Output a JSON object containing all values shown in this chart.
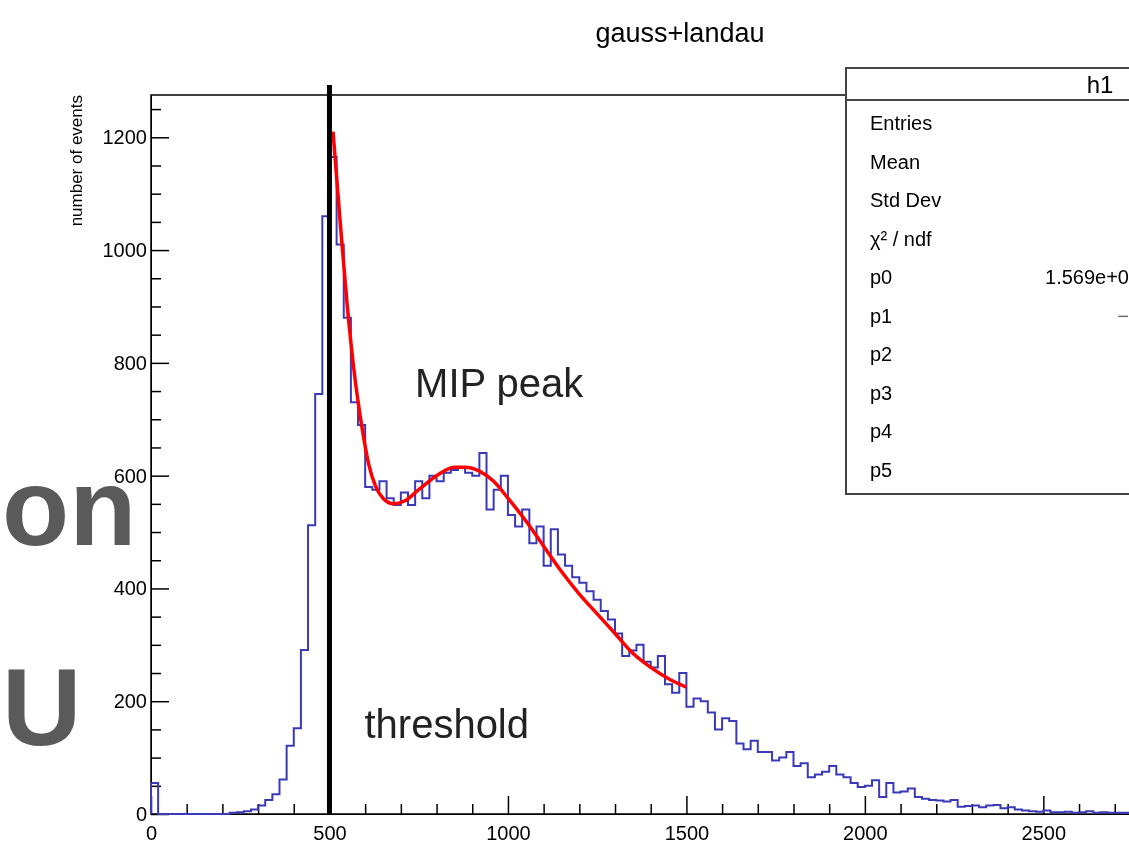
{
  "chart_data": {
    "type": "histogram",
    "title": "gauss+landau",
    "ylabel": "number of events",
    "xlim": [
      0,
      2740
    ],
    "ylim": [
      0,
      1275
    ],
    "xticks": [
      0,
      {
        "value": 100,
        "label": null
      },
      {
        "value": 200,
        "label": null
      },
      {
        "value": 300,
        "label": null
      },
      {
        "value": 400,
        "label": null
      },
      500,
      {
        "value": 600,
        "label": null
      },
      {
        "value": 700,
        "label": null
      },
      {
        "value": 800,
        "label": null
      },
      {
        "value": 900,
        "label": null
      },
      1000,
      {
        "value": 1100,
        "label": null
      },
      {
        "value": 1200,
        "label": null
      },
      {
        "value": 1300,
        "label": null
      },
      {
        "value": 1400,
        "label": null
      },
      1500,
      {
        "value": 1600,
        "label": null
      },
      {
        "value": 1700,
        "label": null
      },
      {
        "value": 1800,
        "label": null
      },
      {
        "value": 1900,
        "label": null
      },
      2000,
      {
        "value": 2100,
        "label": null
      },
      {
        "value": 2200,
        "label": null
      },
      {
        "value": 2300,
        "label": null
      },
      {
        "value": 2400,
        "label": null
      },
      2500,
      {
        "value": 2600,
        "label": null
      },
      {
        "value": 2700,
        "label": null
      }
    ],
    "yticks": [
      0,
      {
        "value": 50,
        "label": null
      },
      {
        "value": 100,
        "label": null
      },
      {
        "value": 150,
        "label": null
      },
      200,
      {
        "value": 250,
        "label": null
      },
      {
        "value": 300,
        "label": null
      },
      {
        "value": 350,
        "label": null
      },
      400,
      {
        "value": 450,
        "label": null
      },
      {
        "value": 500,
        "label": null
      },
      {
        "value": 550,
        "label": null
      },
      600,
      {
        "value": 650,
        "label": null
      },
      {
        "value": 700,
        "label": null
      },
      {
        "value": 750,
        "label": null
      },
      800,
      {
        "value": 850,
        "label": null
      },
      {
        "value": 900,
        "label": null
      },
      {
        "value": 950,
        "label": null
      },
      1000,
      {
        "value": 1050,
        "label": null
      },
      {
        "value": 1100,
        "label": null
      },
      {
        "value": 1150,
        "label": null
      },
      1200,
      {
        "value": 1250,
        "label": null
      }
    ],
    "bins": [
      0,
      20,
      40,
      60,
      80,
      100,
      120,
      140,
      160,
      180,
      200,
      220,
      240,
      260,
      280,
      300,
      320,
      340,
      360,
      380,
      400,
      420,
      440,
      460,
      480,
      500,
      520,
      540,
      560,
      580,
      600,
      620,
      640,
      660,
      680,
      700,
      720,
      740,
      760,
      780,
      800,
      820,
      840,
      860,
      880,
      900,
      920,
      940,
      960,
      980,
      1000,
      1020,
      1040,
      1060,
      1080,
      1100,
      1120,
      1140,
      1160,
      1180,
      1200,
      1220,
      1240,
      1260,
      1280,
      1300,
      1320,
      1340,
      1360,
      1380,
      1400,
      1420,
      1440,
      1460,
      1480,
      1500,
      1520,
      1540,
      1560,
      1580,
      1600,
      1620,
      1640,
      1660,
      1680,
      1700,
      1720,
      1740,
      1760,
      1780,
      1800,
      1820,
      1840,
      1860,
      1880,
      1900,
      1920,
      1940,
      1960,
      1980,
      2000,
      2020,
      2040,
      2060,
      2080,
      2100,
      2120,
      2140,
      2160,
      2180,
      2200,
      2220,
      2240,
      2260,
      2280,
      2300,
      2320,
      2340,
      2360,
      2380,
      2400,
      2420,
      2440,
      2460,
      2480,
      2500,
      2520,
      2540,
      2560,
      2580,
      2600,
      2620,
      2640,
      2660,
      2680,
      2700,
      2720,
      2740
    ],
    "series": [
      {
        "color": "#3a3ab8",
        "values": [
          55,
          0,
          0,
          0,
          0,
          0,
          0,
          0,
          0,
          0,
          0,
          2,
          3,
          5,
          8,
          15,
          25,
          35,
          61,
          121,
          152,
          291,
          512,
          745,
          1060,
          1165,
          1010,
          880,
          730,
          690,
          580,
          575,
          590,
          560,
          548,
          570,
          548,
          590,
          560,
          600,
          590,
          605,
          610,
          615,
          605,
          600,
          640,
          540,
          575,
          600,
          530,
          510,
          540,
          480,
          510,
          440,
          505,
          460,
          440,
          420,
          410,
          395,
          380,
          360,
          345,
          320,
          280,
          290,
          300,
          270,
          260,
          280,
          230,
          215,
          250,
          190,
          205,
          200,
          180,
          150,
          170,
          165,
          125,
          115,
          130,
          110,
          110,
          95,
          100,
          110,
          85,
          90,
          65,
          70,
          75,
          85,
          70,
          65,
          55,
          48,
          50,
          60,
          30,
          55,
          38,
          40,
          45,
          30,
          27,
          25,
          24,
          22,
          25,
          13,
          14,
          15,
          12,
          15,
          16,
          10,
          12,
          8,
          6,
          5,
          4,
          6,
          3,
          3,
          4,
          2,
          3,
          5,
          2,
          3,
          2,
          2,
          2
        ]
      },
      {
        "type": "line",
        "color": "#ff0000",
        "x": [
          510,
          530,
          550,
          570,
          590,
          610,
          630,
          650,
          680,
          710,
          750,
          800,
          850,
          880,
          920,
          960,
          1000,
          1050,
          1100,
          1150,
          1200,
          1250,
          1300,
          1350,
          1400,
          1450,
          1500
        ],
        "values": [
          1210,
          1050,
          900,
          780,
          690,
          620,
          580,
          560,
          550,
          555,
          575,
          600,
          615,
          615,
          608,
          590,
          560,
          520,
          475,
          430,
          390,
          355,
          320,
          285,
          260,
          240,
          225
        ]
      }
    ],
    "ref_lines": [
      {
        "axis": "x",
        "value": 500,
        "label": "threshold",
        "color": "#000000"
      }
    ],
    "annotations": [
      {
        "text": "MIP peak",
        "x": 880,
        "y": 615
      },
      "h1",
      "Entries",
      "Mean",
      "Std Dev",
      "χ² / ndf",
      "p0",
      "p1",
      "p2",
      "p3",
      "p4",
      "p5",
      "1.569e+0",
      "−",
      "on",
      "U"
    ]
  }
}
